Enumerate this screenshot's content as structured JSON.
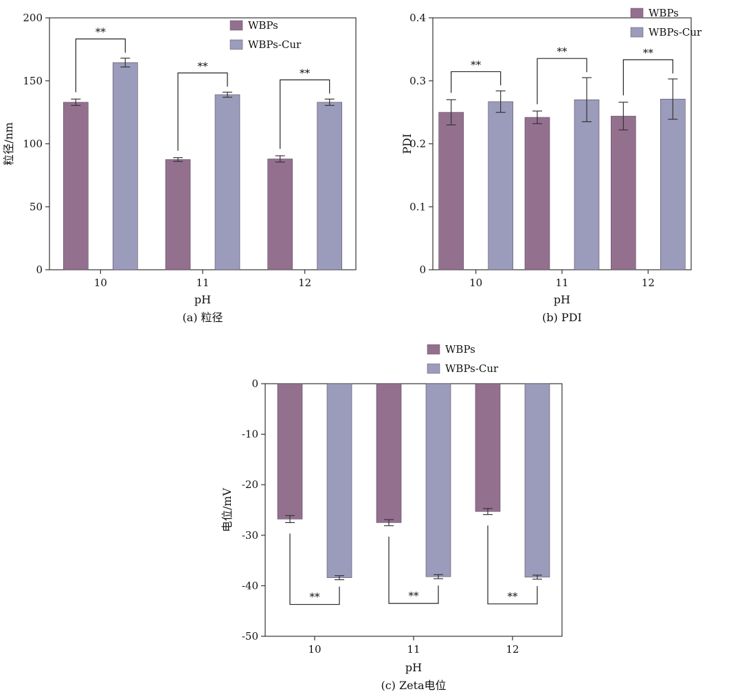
{
  "chart_data": [
    {
      "type": "bar",
      "panel": "a",
      "caption": "(a) 粒径",
      "xlabel": "pH",
      "ylabel": "粒径/nm",
      "categories": [
        "10",
        "11",
        "12"
      ],
      "ylim": [
        0,
        200
      ],
      "yticks": [
        0,
        50,
        100,
        150,
        200
      ],
      "series": [
        {
          "name": "WBPs",
          "values": [
            133,
            87.5,
            88
          ],
          "errors": [
            2.5,
            1.5,
            2.5
          ]
        },
        {
          "name": "WBPs-Cur",
          "values": [
            164.5,
            139,
            133
          ],
          "errors": [
            3.5,
            2,
            2.5
          ]
        }
      ],
      "significance": [
        {
          "category": "10",
          "label": "**"
        },
        {
          "category": "11",
          "label": "**"
        },
        {
          "category": "12",
          "label": "**"
        }
      ],
      "legend_position": "top-right",
      "grid": false
    },
    {
      "type": "bar",
      "panel": "b",
      "caption": "(b) PDI",
      "xlabel": "pH",
      "ylabel": "PDI",
      "categories": [
        "10",
        "11",
        "12"
      ],
      "ylim": [
        0,
        0.4
      ],
      "yticks": [
        0,
        0.1,
        0.2,
        0.3,
        0.4
      ],
      "series": [
        {
          "name": "WBPs",
          "values": [
            0.25,
            0.242,
            0.244
          ],
          "errors": [
            0.02,
            0.01,
            0.022
          ]
        },
        {
          "name": "WBPs-Cur",
          "values": [
            0.267,
            0.27,
            0.271
          ],
          "errors": [
            0.017,
            0.035,
            0.032
          ]
        }
      ],
      "significance": [
        {
          "category": "10",
          "label": "**"
        },
        {
          "category": "11",
          "label": "**"
        },
        {
          "category": "12",
          "label": "**"
        }
      ],
      "legend_position": "top-right",
      "grid": false
    },
    {
      "type": "bar",
      "panel": "c",
      "caption": "(c) Zeta电位",
      "xlabel": "pH",
      "ylabel": "电位/mV",
      "categories": [
        "10",
        "11",
        "12"
      ],
      "ylim": [
        -50,
        0
      ],
      "yticks": [
        0,
        -10,
        -20,
        -30,
        -40,
        -50
      ],
      "series": [
        {
          "name": "WBPs",
          "values": [
            -26.8,
            -27.5,
            -25.3
          ],
          "errors": [
            0.7,
            0.6,
            0.6
          ]
        },
        {
          "name": "WBPs-Cur",
          "values": [
            -38.4,
            -38.2,
            -38.3
          ],
          "errors": [
            0.4,
            0.4,
            0.4
          ]
        }
      ],
      "significance": [
        {
          "category": "10",
          "label": "**"
        },
        {
          "category": "11",
          "label": "**"
        },
        {
          "category": "12",
          "label": "**"
        }
      ],
      "legend_position": "top-left",
      "grid": false
    }
  ],
  "colors": {
    "WBPs": "#94708f",
    "WBPs-Cur": "#9b9cbb",
    "stroke": "#5a4a60",
    "axis": "#333333"
  }
}
